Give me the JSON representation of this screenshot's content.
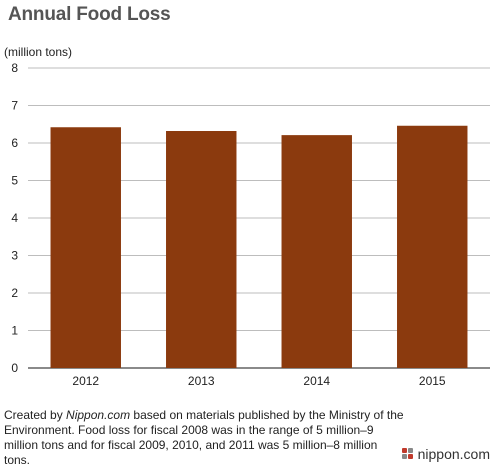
{
  "title": "Annual Food Loss",
  "unit_label": "(million tons)",
  "note": {
    "prefix": "Created by ",
    "source_name": "Nippon.com",
    "suffix": " based on materials published by the Ministry of the Environment. Food loss for fiscal 2008 was in the range of 5 million–9 million tons and for fiscal 2009, 2010, and 2011 was 5 million–8 million tons."
  },
  "logo_text": "nippon.com",
  "colors": {
    "bar": "#8B3A0E",
    "logo_a": "#c0392b",
    "logo_b": "#888888"
  },
  "chart_data": {
    "type": "bar",
    "title": "Annual Food Loss",
    "ylabel": "(million tons)",
    "xlabel": "",
    "categories": [
      "2012",
      "2013",
      "2014",
      "2015"
    ],
    "values": [
      6.42,
      6.32,
      6.21,
      6.46
    ],
    "ylim": [
      0,
      8
    ],
    "yticks": [
      0,
      1,
      2,
      3,
      4,
      5,
      6,
      7,
      8
    ],
    "grid": true
  }
}
